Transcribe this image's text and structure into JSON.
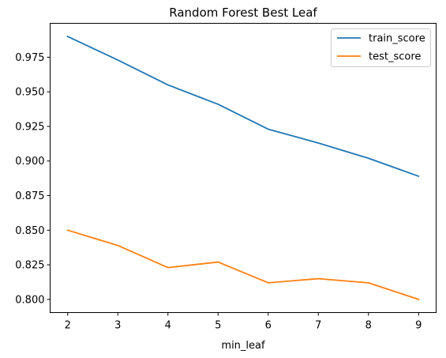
{
  "chart_data": {
    "type": "line",
    "title": "Random Forest Best Leaf",
    "xlabel": "min_leaf",
    "ylabel": "",
    "x": [
      2,
      3,
      4,
      5,
      6,
      7,
      8,
      9
    ],
    "xticks": [
      2,
      3,
      4,
      5,
      6,
      7,
      8,
      9
    ],
    "xlim": [
      1.65,
      9.35
    ],
    "yticks": [
      0.8,
      0.825,
      0.85,
      0.875,
      0.9,
      0.925,
      0.95,
      0.975
    ],
    "ytick_labels": [
      "0.800",
      "0.825",
      "0.850",
      "0.875",
      "0.900",
      "0.925",
      "0.950",
      "0.975"
    ],
    "ylim": [
      0.7905,
      0.9995
    ],
    "grid": false,
    "legend_position": "upper right",
    "series": [
      {
        "name": "train_score",
        "color": "#1f77b4",
        "values": [
          0.99,
          0.973,
          0.955,
          0.941,
          0.923,
          0.913,
          0.902,
          0.889
        ]
      },
      {
        "name": "test_score",
        "color": "#ff7f0e",
        "values": [
          0.85,
          0.839,
          0.823,
          0.827,
          0.812,
          0.815,
          0.812,
          0.8
        ]
      }
    ]
  }
}
